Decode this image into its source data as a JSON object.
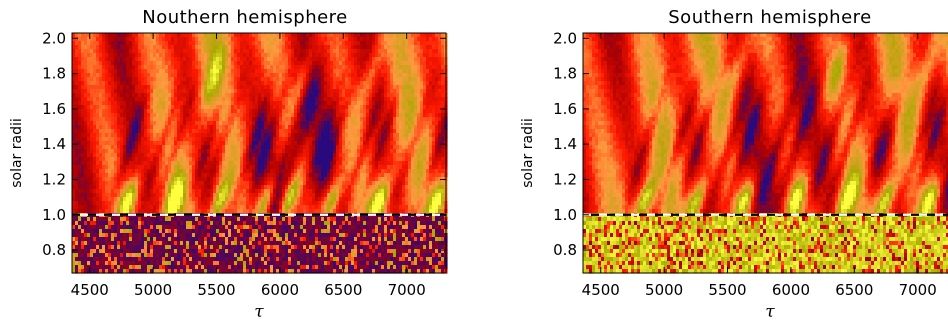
{
  "chart_data": [
    {
      "type": "heatmap",
      "title": "Nouthern hemisphere",
      "xlabel": "τ",
      "ylabel": "solar radii",
      "xlim": [
        4360,
        7310
      ],
      "ylim": [
        0.67,
        2.03
      ],
      "x_ticks": [
        4500,
        5000,
        5500,
        6000,
        6500,
        7000
      ],
      "x_tick_labels": [
        "4500",
        "5000",
        "5500",
        "6000",
        "6500",
        "7000"
      ],
      "y_ticks": [
        0.8,
        1.0,
        1.2,
        1.4,
        1.6,
        1.8,
        2.0
      ],
      "y_tick_labels": [
        "0.8",
        "1.0",
        "1.2",
        "1.4",
        "1.6",
        "1.8",
        "2.0"
      ],
      "reference_line": {
        "y": 1.0,
        "style": "dashed",
        "colors": [
          "#ffffff",
          "#000000"
        ]
      },
      "colormap": [
        "#1a0a8c",
        "#b00000",
        "#ff1a00",
        "#ff9a40",
        "#a8a800",
        "#ffff40"
      ],
      "below_surface_tone": "blue",
      "bright_features_x": [
        4760,
        5120,
        5480,
        5840,
        6020,
        6360,
        6740,
        7200
      ],
      "bright_feature_peak_y": 1.78
    },
    {
      "type": "heatmap",
      "title": "Southern hemisphere",
      "xlabel": "τ",
      "ylabel": "solar radii",
      "xlim": [
        4360,
        7310
      ],
      "ylim": [
        0.67,
        2.03
      ],
      "x_ticks": [
        4500,
        5000,
        5500,
        6000,
        6500,
        7000
      ],
      "x_tick_labels": [
        "4500",
        "5000",
        "5500",
        "6000",
        "6500",
        "7000"
      ],
      "y_ticks": [
        0.8,
        1.0,
        1.2,
        1.4,
        1.6,
        1.8,
        2.0
      ],
      "y_tick_labels": [
        "0.8",
        "1.0",
        "1.2",
        "1.4",
        "1.6",
        "1.8",
        "2.0"
      ],
      "reference_line": {
        "y": 1.0,
        "style": "dashed",
        "colors": [
          "#000000",
          "#ffffff"
        ]
      },
      "colormap": [
        "#1a0a8c",
        "#b00000",
        "#ff1a00",
        "#ff9a40",
        "#a8a800",
        "#ffff40"
      ],
      "below_surface_tone": "yellow",
      "bright_features_x": [
        4800,
        5210,
        5590,
        5990,
        6390,
        6700,
        7050
      ],
      "bright_feature_peak_y": 1.8
    }
  ]
}
